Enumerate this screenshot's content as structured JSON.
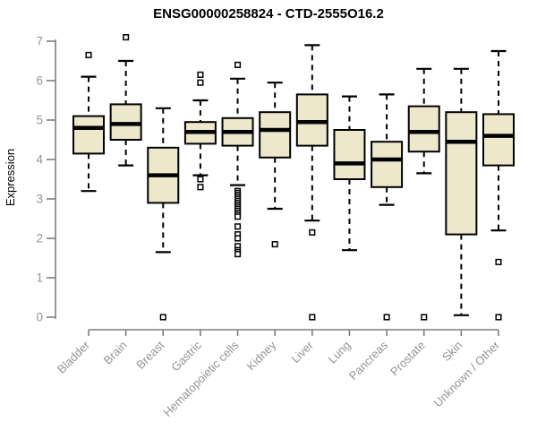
{
  "chart_data": {
    "type": "box",
    "title": "ENSG00000258824 - CTD-2555O16.2",
    "ylabel": "Expression",
    "xlabel": "",
    "ylim": [
      0,
      7
    ],
    "yticks": [
      0,
      1,
      2,
      3,
      4,
      5,
      6,
      7
    ],
    "grid": false,
    "legend": "none",
    "categories": [
      "Bladder",
      "Brain",
      "Breast",
      "Gastric",
      "Hematopoietic cells",
      "Kidney",
      "Liver",
      "Lung",
      "Pancreas",
      "Prostate",
      "Skin",
      "Unknown / Other"
    ],
    "series": [
      {
        "name": "Bladder",
        "whisker_low": 3.2,
        "q1": 4.15,
        "median": 4.8,
        "q3": 5.1,
        "whisker_high": 6.1,
        "outliers": [
          6.65
        ]
      },
      {
        "name": "Brain",
        "whisker_low": 3.85,
        "q1": 4.5,
        "median": 4.9,
        "q3": 5.4,
        "whisker_high": 6.5,
        "outliers": [
          7.1
        ]
      },
      {
        "name": "Breast",
        "whisker_low": 1.65,
        "q1": 2.9,
        "median": 3.6,
        "q3": 4.3,
        "whisker_high": 5.3,
        "outliers": [
          0
        ]
      },
      {
        "name": "Gastric",
        "whisker_low": 3.6,
        "q1": 4.4,
        "median": 4.7,
        "q3": 4.95,
        "whisker_high": 5.5,
        "outliers": [
          6.15,
          5.95,
          3.5,
          3.3
        ]
      },
      {
        "name": "Hematopoietic cells",
        "whisker_low": 3.35,
        "q1": 4.35,
        "median": 4.7,
        "q3": 5.05,
        "whisker_high": 6.05,
        "outliers": [
          6.4,
          3.2,
          3.15,
          3.1,
          3.05,
          3.0,
          2.95,
          2.9,
          2.85,
          2.8,
          2.75,
          2.7,
          2.65,
          2.6,
          2.55,
          2.3,
          2.1,
          2.0,
          1.8,
          1.7,
          1.65,
          1.6
        ]
      },
      {
        "name": "Kidney",
        "whisker_low": 2.75,
        "q1": 4.05,
        "median": 4.75,
        "q3": 5.2,
        "whisker_high": 5.95,
        "outliers": [
          1.85
        ]
      },
      {
        "name": "Liver",
        "whisker_low": 2.45,
        "q1": 4.35,
        "median": 4.95,
        "q3": 5.65,
        "whisker_high": 6.9,
        "outliers": [
          2.15,
          0
        ]
      },
      {
        "name": "Lung",
        "whisker_low": 1.7,
        "q1": 3.5,
        "median": 3.9,
        "q3": 4.75,
        "whisker_high": 5.6,
        "outliers": []
      },
      {
        "name": "Pancreas",
        "whisker_low": 2.85,
        "q1": 3.3,
        "median": 4.0,
        "q3": 4.45,
        "whisker_high": 5.65,
        "outliers": [
          0
        ]
      },
      {
        "name": "Prostate",
        "whisker_low": 3.65,
        "q1": 4.2,
        "median": 4.7,
        "q3": 5.35,
        "whisker_high": 6.3,
        "outliers": [
          0
        ]
      },
      {
        "name": "Skin",
        "whisker_low": 0.05,
        "q1": 2.1,
        "median": 4.45,
        "q3": 5.2,
        "whisker_high": 6.3,
        "outliers": []
      },
      {
        "name": "Unknown / Other",
        "whisker_low": 2.2,
        "q1": 3.85,
        "median": 4.6,
        "q3": 5.15,
        "whisker_high": 6.75,
        "outliers": [
          1.4,
          0
        ]
      }
    ],
    "colors": {
      "box_fill": "#EDE7CB",
      "box_border": "#000000",
      "median": "#000000",
      "whisker": "#000000",
      "outlier_stroke": "#000000",
      "outlier_fill": "#FFFFFF",
      "axis": "#7E7E7E",
      "tick_label": "#949494",
      "title": "#000000",
      "background": "#FFFFFF"
    }
  }
}
